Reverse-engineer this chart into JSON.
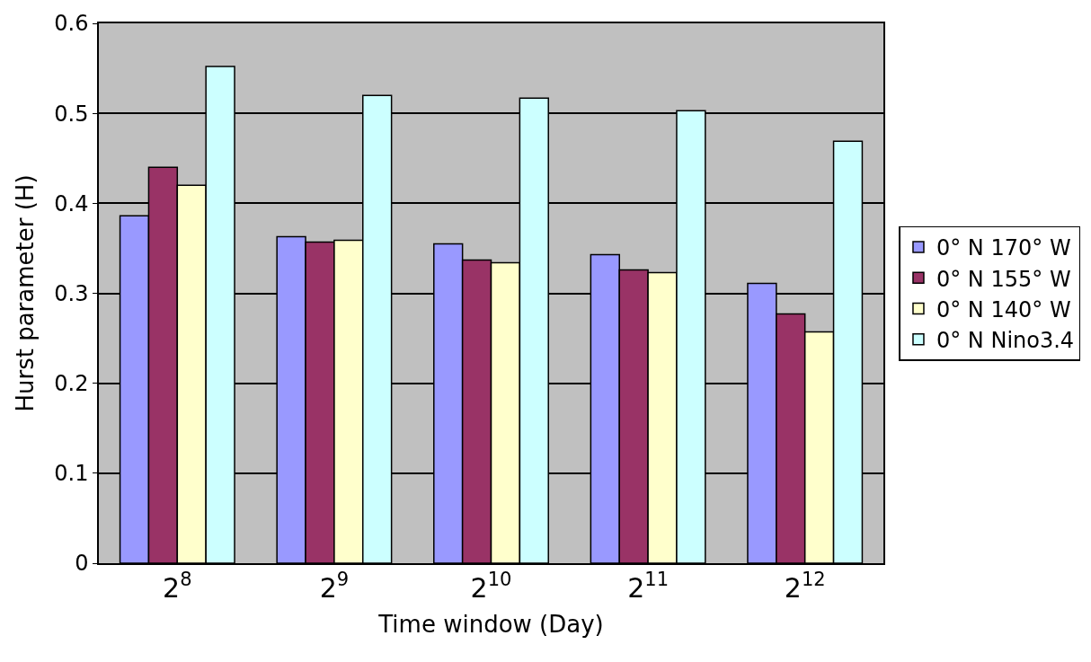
{
  "chart_data": {
    "type": "bar",
    "xlabel": "Time window (Day)",
    "ylabel": "Hurst parameter (H)",
    "categories": [
      "2$^{8}$",
      "2$^{9}$",
      "2$^{10}$",
      "2$^{11}$",
      "2$^{12}$"
    ],
    "series": [
      {
        "name": "0° N 170° W",
        "color": "#9999ff",
        "values": [
          0.386,
          0.363,
          0.355,
          0.343,
          0.311
        ]
      },
      {
        "name": "0° N 155° W",
        "color": "#993366",
        "values": [
          0.44,
          0.357,
          0.337,
          0.326,
          0.277
        ]
      },
      {
        "name": "0° N 140° W",
        "color": "#ffffcc",
        "values": [
          0.42,
          0.359,
          0.334,
          0.323,
          0.257
        ]
      },
      {
        "name": "0° N Nino3.4",
        "color": "#ccffff",
        "values": [
          0.552,
          0.52,
          0.517,
          0.503,
          0.469
        ]
      }
    ],
    "ylim": [
      0,
      0.6
    ],
    "yticks": [
      0,
      0.1,
      0.2,
      0.3,
      0.4,
      0.5,
      0.6
    ],
    "grid": "y",
    "legend": "right"
  }
}
